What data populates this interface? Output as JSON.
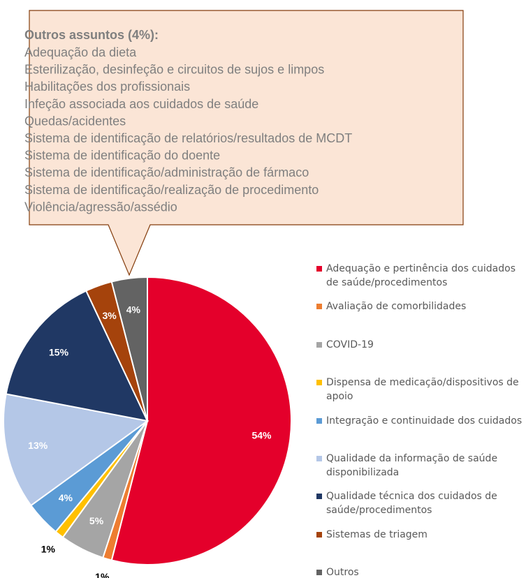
{
  "chart_data": {
    "type": "pie",
    "categories": [
      "Adequação e pertinência dos cuidados de saúde/procedimentos",
      "Avaliação de comorbilidades",
      "COVID-19",
      "Dispensa de medicação/dispositivos de apoio",
      "Integração e continuidade dos cuidados",
      "Qualidade da informação de saúde disponibilizada",
      "Qualidade técnica dos cuidados de saúde/procedimentos",
      "Sistemas de triagem",
      "Outros"
    ],
    "values": [
      54,
      1,
      5,
      1,
      4,
      13,
      15,
      3,
      4
    ],
    "value_labels": [
      "54%",
      "1%",
      "5%",
      "1%",
      "4%",
      "13%",
      "15%",
      "3%",
      "4%"
    ],
    "colors": [
      "#e4002b",
      "#ed7d31",
      "#a5a5a5",
      "#ffc000",
      "#5b9bd5",
      "#b4c7e7",
      "#203864",
      "#a5430c",
      "#636363"
    ],
    "legend": "right"
  },
  "callout": {
    "title": "Outros assuntos (4%):",
    "lines": [
      "Adequação da dieta",
      "Esterilização, desinfeção e circuitos de sujos e limpos",
      "Habilitações dos profissionais",
      "Infeção associada aos cuidados de saúde",
      "Quedas/acidentes",
      "Sistema de identificação de relatórios/resultados de MCDT",
      "Sistema de identificação do doente",
      "Sistema de identificação/administração de fármaco",
      "Sistema de identificação/realização de procedimento",
      "Violência/agressão/assédio"
    ]
  }
}
